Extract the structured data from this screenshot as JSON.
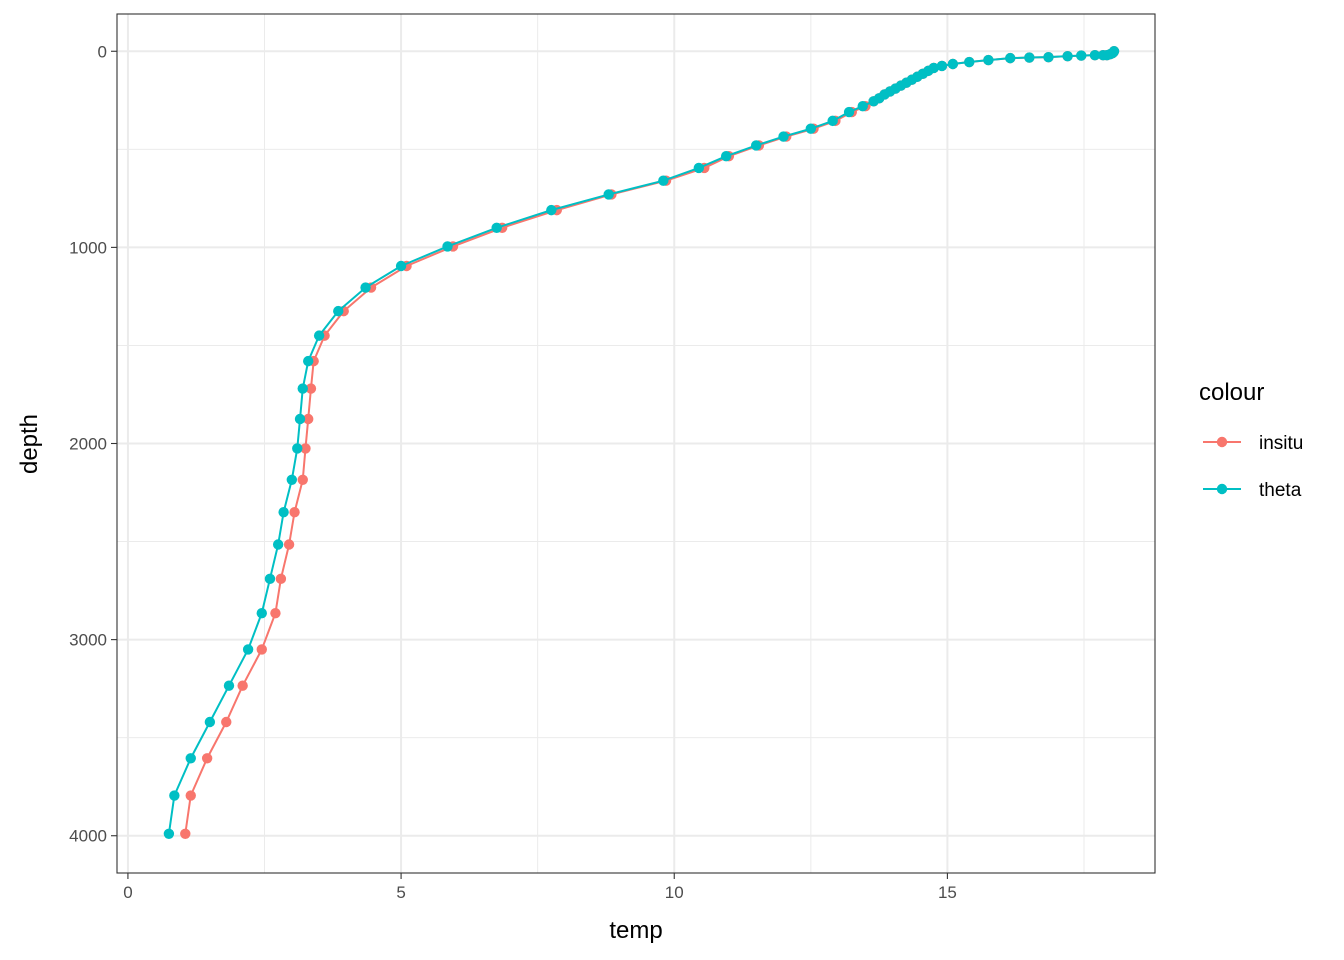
{
  "chart_data": {
    "type": "line",
    "xlabel": "temp",
    "ylabel": "depth",
    "xlim": [
      -0.2,
      18.8
    ],
    "ylim": [
      4190,
      -190
    ],
    "y_reversed": true,
    "x_ticks": [
      0,
      5,
      10,
      15
    ],
    "x_tick_labels": [
      "0",
      "5",
      "10",
      "15"
    ],
    "y_ticks": [
      0,
      1000,
      2000,
      3000,
      4000
    ],
    "y_tick_labels": [
      "0",
      "1000",
      "2000",
      "3000",
      "4000"
    ],
    "grid": true,
    "legend": {
      "title": "colour",
      "placement": "right"
    },
    "series": [
      {
        "name": "insitu",
        "color": "#F8766D",
        "points": [
          [
            18.05,
            0
          ],
          [
            18.04,
            5
          ],
          [
            18.02,
            10
          ],
          [
            17.98,
            15
          ],
          [
            17.92,
            20
          ],
          [
            17.85,
            20
          ],
          [
            17.7,
            20
          ],
          [
            17.45,
            22
          ],
          [
            17.2,
            25
          ],
          [
            16.85,
            30
          ],
          [
            16.5,
            32
          ],
          [
            16.15,
            35
          ],
          [
            15.75,
            45
          ],
          [
            15.4,
            55
          ],
          [
            15.1,
            65
          ],
          [
            14.9,
            75
          ],
          [
            14.75,
            85
          ],
          [
            14.65,
            100
          ],
          [
            14.55,
            115
          ],
          [
            14.45,
            130
          ],
          [
            14.35,
            145
          ],
          [
            14.25,
            160
          ],
          [
            14.15,
            175
          ],
          [
            14.05,
            190
          ],
          [
            13.95,
            205
          ],
          [
            13.85,
            220
          ],
          [
            13.75,
            240
          ],
          [
            13.65,
            255
          ],
          [
            13.5,
            280
          ],
          [
            13.25,
            310
          ],
          [
            12.95,
            355
          ],
          [
            12.55,
            395
          ],
          [
            12.05,
            435
          ],
          [
            11.55,
            480
          ],
          [
            11.0,
            535
          ],
          [
            10.55,
            595
          ],
          [
            9.85,
            660
          ],
          [
            8.85,
            730
          ],
          [
            7.85,
            810
          ],
          [
            6.85,
            900
          ],
          [
            5.95,
            995
          ],
          [
            5.1,
            1095
          ],
          [
            4.45,
            1205
          ],
          [
            3.95,
            1325
          ],
          [
            3.6,
            1450
          ],
          [
            3.4,
            1580
          ],
          [
            3.35,
            1720
          ],
          [
            3.3,
            1875
          ],
          [
            3.25,
            2025
          ],
          [
            3.2,
            2185
          ],
          [
            3.05,
            2350
          ],
          [
            2.95,
            2515
          ],
          [
            2.8,
            2690
          ],
          [
            2.7,
            2865
          ],
          [
            2.45,
            3050
          ],
          [
            2.1,
            3235
          ],
          [
            1.8,
            3420
          ],
          [
            1.45,
            3605
          ],
          [
            1.15,
            3795
          ],
          [
            1.05,
            3990
          ]
        ]
      },
      {
        "name": "theta",
        "color": "#00BFC4",
        "points": [
          [
            18.05,
            0
          ],
          [
            18.04,
            5
          ],
          [
            18.02,
            10
          ],
          [
            17.98,
            15
          ],
          [
            17.92,
            20
          ],
          [
            17.85,
            20
          ],
          [
            17.7,
            20
          ],
          [
            17.45,
            22
          ],
          [
            17.2,
            25
          ],
          [
            16.85,
            30
          ],
          [
            16.5,
            32
          ],
          [
            16.15,
            35
          ],
          [
            15.75,
            45
          ],
          [
            15.4,
            55
          ],
          [
            15.1,
            65
          ],
          [
            14.9,
            75
          ],
          [
            14.75,
            85
          ],
          [
            14.65,
            100
          ],
          [
            14.55,
            115
          ],
          [
            14.45,
            130
          ],
          [
            14.35,
            145
          ],
          [
            14.25,
            160
          ],
          [
            14.15,
            175
          ],
          [
            14.05,
            190
          ],
          [
            13.95,
            205
          ],
          [
            13.85,
            220
          ],
          [
            13.75,
            240
          ],
          [
            13.65,
            255
          ],
          [
            13.45,
            280
          ],
          [
            13.2,
            310
          ],
          [
            12.9,
            355
          ],
          [
            12.5,
            395
          ],
          [
            12.0,
            435
          ],
          [
            11.5,
            480
          ],
          [
            10.95,
            535
          ],
          [
            10.45,
            595
          ],
          [
            9.8,
            660
          ],
          [
            8.8,
            730
          ],
          [
            7.75,
            810
          ],
          [
            6.75,
            900
          ],
          [
            5.85,
            995
          ],
          [
            5.0,
            1095
          ],
          [
            4.35,
            1205
          ],
          [
            3.85,
            1325
          ],
          [
            3.5,
            1450
          ],
          [
            3.3,
            1580
          ],
          [
            3.2,
            1720
          ],
          [
            3.15,
            1875
          ],
          [
            3.1,
            2025
          ],
          [
            3.0,
            2185
          ],
          [
            2.85,
            2350
          ],
          [
            2.75,
            2515
          ],
          [
            2.6,
            2690
          ],
          [
            2.45,
            2865
          ],
          [
            2.2,
            3050
          ],
          [
            1.85,
            3235
          ],
          [
            1.5,
            3420
          ],
          [
            1.15,
            3605
          ],
          [
            0.85,
            3795
          ],
          [
            0.75,
            3990
          ]
        ]
      }
    ]
  }
}
